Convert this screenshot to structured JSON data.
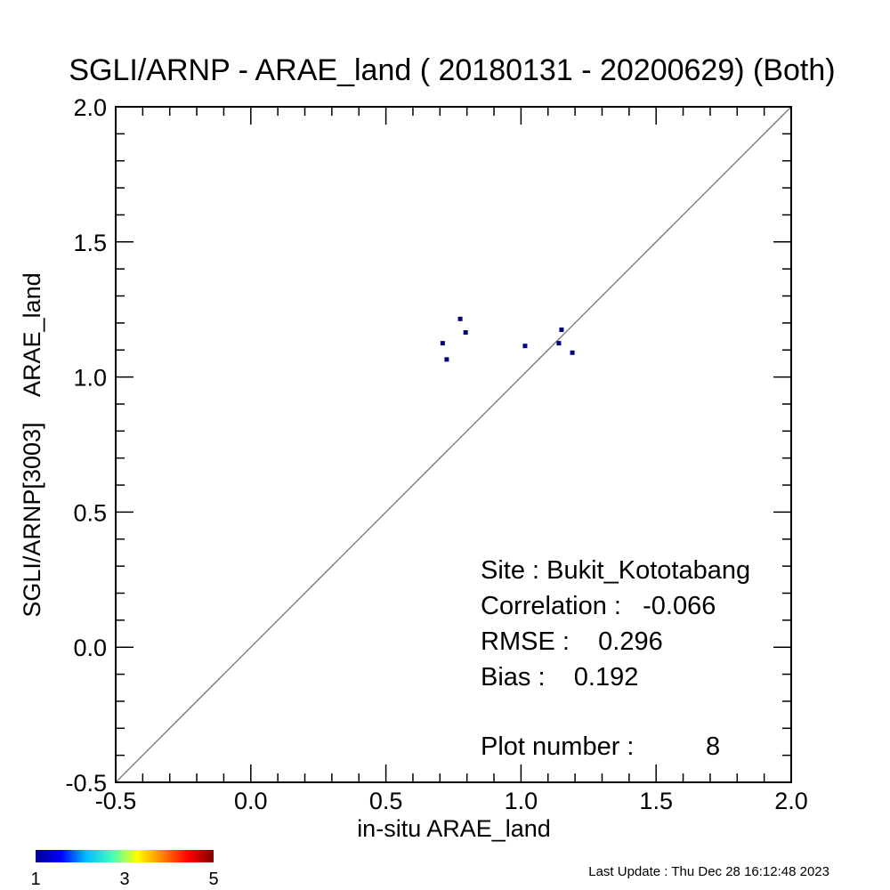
{
  "chart_data": {
    "type": "scatter",
    "title": "SGLI/ARNP - ARAE_land ( 20180131 - 20200629) (Both)",
    "xlabel": "in-situ ARAE_land",
    "ylabel": "SGLI/ARNP[3003]    ARAE_land",
    "xlim": [
      -0.5,
      2.0
    ],
    "ylim": [
      -0.5,
      2.0
    ],
    "xticks": [
      -0.5,
      0.0,
      0.5,
      1.0,
      1.5,
      2.0
    ],
    "yticks": [
      -0.5,
      0.0,
      0.5,
      1.0,
      1.5,
      2.0
    ],
    "x_tick_labels": [
      "-0.5",
      "0.0",
      "0.5",
      "1.0",
      "1.5",
      "2.0"
    ],
    "y_tick_labels": [
      "-0.5",
      "0.0",
      "0.5",
      "1.0",
      "1.5",
      "2.0"
    ],
    "reference_line": "1:1",
    "grid": false,
    "point_color": "#000080",
    "line_color": "#808080",
    "points": [
      {
        "x": 0.71,
        "y": 1.125
      },
      {
        "x": 0.725,
        "y": 1.065
      },
      {
        "x": 0.775,
        "y": 1.215
      },
      {
        "x": 0.795,
        "y": 1.165
      },
      {
        "x": 1.015,
        "y": 1.115
      },
      {
        "x": 1.14,
        "y": 1.125
      },
      {
        "x": 1.15,
        "y": 1.175
      },
      {
        "x": 1.19,
        "y": 1.09
      }
    ],
    "stats": {
      "site": "Site : Bukit_Kototabang",
      "correlation": "Correlation :   -0.066",
      "rmse": "RMSE :    0.296",
      "bias": "Bias :    0.192",
      "plot_number": "Plot number :          8"
    },
    "colorbar": {
      "min_label": "1",
      "mid_label": "3",
      "max_label": "5",
      "colors": [
        "#00008f",
        "#0000ff",
        "#00bfff",
        "#40ffbf",
        "#ffff00",
        "#ff8000",
        "#ff0000",
        "#800000"
      ]
    },
    "footer": "Last Update : Thu Dec 28 16:12:48 2023"
  }
}
